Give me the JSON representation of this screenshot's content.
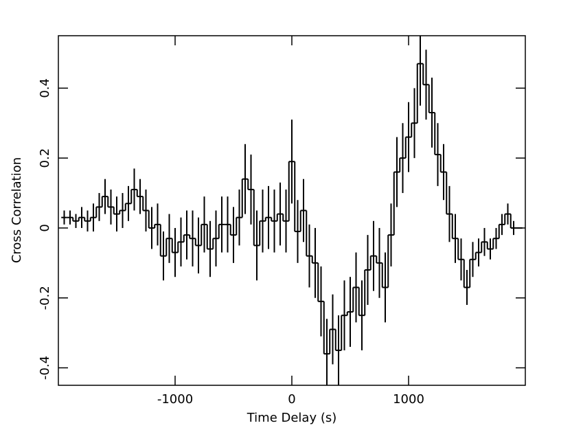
{
  "chart_data": {
    "type": "step",
    "x_label": "Time Delay (s)",
    "y_label": "Cross Correlation",
    "x": [
      -1950,
      -1900,
      -1850,
      -1800,
      -1750,
      -1700,
      -1650,
      -1600,
      -1550,
      -1500,
      -1450,
      -1400,
      -1350,
      -1300,
      -1250,
      -1200,
      -1150,
      -1100,
      -1050,
      -1000,
      -950,
      -900,
      -850,
      -800,
      -750,
      -700,
      -650,
      -600,
      -550,
      -500,
      -450,
      -400,
      -350,
      -300,
      -250,
      -200,
      -150,
      -100,
      -50,
      0,
      50,
      100,
      150,
      200,
      250,
      300,
      350,
      400,
      450,
      500,
      550,
      600,
      650,
      700,
      750,
      800,
      850,
      900,
      950,
      1000,
      1050,
      1100,
      1150,
      1200,
      1250,
      1300,
      1350,
      1400,
      1450,
      1500,
      1550,
      1600,
      1650,
      1700,
      1750,
      1800,
      1850,
      1900,
      1950
    ],
    "series": [
      {
        "color": "#000000",
        "values": [
          0.03,
          0.03,
          0.02,
          0.03,
          0.02,
          0.03,
          0.06,
          0.09,
          0.06,
          0.04,
          0.05,
          0.07,
          0.11,
          0.09,
          0.05,
          0.0,
          0.01,
          -0.08,
          -0.03,
          -0.07,
          -0.04,
          -0.02,
          -0.03,
          -0.05,
          0.01,
          -0.06,
          -0.03,
          0.01,
          0.01,
          -0.02,
          0.03,
          0.14,
          0.11,
          -0.05,
          0.02,
          0.03,
          0.02,
          0.04,
          0.02,
          0.19,
          -0.01,
          0.05,
          -0.08,
          -0.1,
          -0.21,
          -0.36,
          -0.29,
          -0.35,
          -0.25,
          -0.24,
          -0.17,
          -0.25,
          -0.12,
          -0.08,
          -0.1,
          -0.17,
          -0.02,
          0.16,
          0.2,
          0.26,
          0.3,
          0.47,
          0.41,
          0.33,
          0.21,
          0.16,
          0.04,
          -0.03,
          -0.09,
          -0.17,
          -0.09,
          -0.07,
          -0.04,
          -0.06,
          -0.03,
          0.01,
          0.04,
          0.0,
          0.0
        ],
        "errors": [
          0.02,
          0.02,
          0.02,
          0.03,
          0.03,
          0.04,
          0.04,
          0.05,
          0.05,
          0.05,
          0.05,
          0.05,
          0.06,
          0.05,
          0.06,
          0.06,
          0.06,
          0.07,
          0.07,
          0.07,
          0.07,
          0.07,
          0.08,
          0.08,
          0.08,
          0.08,
          0.08,
          0.08,
          0.08,
          0.08,
          0.08,
          0.1,
          0.1,
          0.1,
          0.09,
          0.09,
          0.09,
          0.09,
          0.09,
          0.12,
          0.09,
          0.09,
          0.09,
          0.1,
          0.1,
          0.1,
          0.1,
          0.1,
          0.1,
          0.1,
          0.1,
          0.1,
          0.1,
          0.1,
          0.1,
          0.1,
          0.09,
          0.1,
          0.1,
          0.1,
          0.1,
          0.12,
          0.1,
          0.1,
          0.09,
          0.08,
          0.08,
          0.07,
          0.06,
          0.05,
          0.05,
          0.04,
          0.04,
          0.03,
          0.03,
          0.03,
          0.03,
          0.02,
          0.0
        ]
      }
    ],
    "xlim": [
      -2000,
      2000
    ],
    "ylim": [
      -0.45,
      0.55
    ],
    "xticks": [
      -1000,
      0,
      1000
    ],
    "yticks": [
      -0.4,
      -0.2,
      0,
      0.2,
      0.4
    ]
  }
}
